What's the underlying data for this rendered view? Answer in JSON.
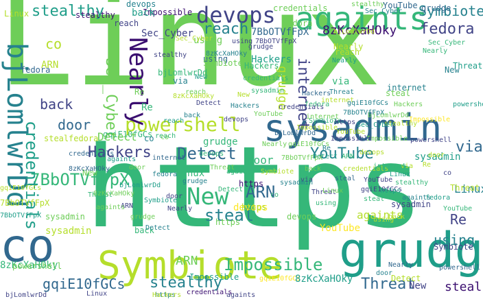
{
  "palette": {
    "dark_purple": "#3b0f70",
    "indigo": "#414487",
    "blue": "#31688e",
    "teal": "#26828e",
    "green": "#1f9e89",
    "emerald": "#35b779",
    "lime": "#6ece58",
    "yellow_green": "#b5de2b",
    "yellow": "#fde725"
  },
  "words": [
    {
      "text": "Linux",
      "color": "#6ece58"
    },
    {
      "text": "https",
      "color": "#35b779"
    },
    {
      "text": "againts",
      "color": "#35b779"
    },
    {
      "text": "sysadmin",
      "color": "#31688e"
    },
    {
      "text": "devops",
      "color": "#414487"
    },
    {
      "text": "Symbiote",
      "color": "#b5de2b"
    },
    {
      "text": "grudge",
      "color": "#1f9e89"
    },
    {
      "text": "co",
      "color": "#31688e"
    },
    {
      "text": "powershell",
      "color": "#b5de2b"
    },
    {
      "text": "Nearly",
      "color": "#3b0f70"
    },
    {
      "text": "bjLomlwrDd",
      "color": "#26828e"
    },
    {
      "text": "fedora",
      "color": "#414487"
    },
    {
      "text": "internet",
      "color": "#414487"
    },
    {
      "text": "Hackers",
      "color": "#414487"
    },
    {
      "text": "Detect",
      "color": "#31688e"
    },
    {
      "text": "YouTube",
      "color": "#26828e"
    },
    {
      "text": "ARN",
      "color": "#31688e"
    },
    {
      "text": "New",
      "color": "#35b779"
    },
    {
      "text": "Threat",
      "color": "#31688e"
    },
    {
      "text": "stealthy",
      "color": "#26828e"
    },
    {
      "text": "Impossible",
      "color": "#35b779"
    },
    {
      "text": "gqiE10fGCs",
      "color": "#31688e"
    },
    {
      "text": "8zKcXaHOky",
      "color": "#3b0f70"
    },
    {
      "text": "7BbOTVfFpX",
      "color": "#35b779"
    },
    {
      "text": "Sec_Cyber",
      "color": "#6ece58"
    },
    {
      "text": "credentials",
      "color": "#1f9e89"
    },
    {
      "text": "reach",
      "color": "#26828e"
    },
    {
      "text": "steal",
      "color": "#26828e"
    },
    {
      "text": "back",
      "color": "#414487"
    },
    {
      "text": "door",
      "color": "#31688e"
    },
    {
      "text": "using",
      "color": "#26828e"
    },
    {
      "text": "via",
      "color": "#31688e"
    },
    {
      "text": "Re",
      "color": "#414487"
    },
    {
      "text": "Symbiote",
      "color": "#26828e"
    },
    {
      "text": "sysadmin",
      "color": "#1f9e89"
    },
    {
      "text": "https",
      "color": "#6ece58"
    },
    {
      "text": "Linux",
      "color": "#26828e"
    },
    {
      "text": "againts",
      "color": "#b5de2b"
    },
    {
      "text": "devops",
      "color": "#fde725"
    },
    {
      "text": "grudge",
      "color": "#b5de2b"
    },
    {
      "text": "credentials",
      "color": "#6ece58"
    },
    {
      "text": "stealthy",
      "color": "#1f9e89"
    },
    {
      "text": "Impossible",
      "color": "#3b0f70"
    },
    {
      "text": "gqiE10fGCs",
      "color": "#fde725"
    },
    {
      "text": "bjLomlwrDd",
      "color": "#35b779"
    },
    {
      "text": "8zKcXaHOky",
      "color": "#1f9e89"
    },
    {
      "text": "7BbOTVfFpX",
      "color": "#31688e"
    },
    {
      "text": "Hackers",
      "color": "#35b779"
    },
    {
      "text": "Detect",
      "color": "#b5de2b"
    },
    {
      "text": "YouTube",
      "color": "#fde725"
    },
    {
      "text": "Threat",
      "color": "#1f9e89"
    },
    {
      "text": "fedora",
      "color": "#6ece58"
    },
    {
      "text": "Nearly",
      "color": "#b5de2b"
    },
    {
      "text": "powershell",
      "color": "#31688e"
    },
    {
      "text": "internet",
      "color": "#26828e"
    },
    {
      "text": "reach",
      "color": "#b5de2b"
    },
    {
      "text": "steal",
      "color": "#3b0f70"
    },
    {
      "text": "using",
      "color": "#6ece58"
    },
    {
      "text": "door",
      "color": "#35b779"
    },
    {
      "text": "back",
      "color": "#1f9e89"
    },
    {
      "text": "via",
      "color": "#35b779"
    },
    {
      "text": "New",
      "color": "#414487"
    },
    {
      "text": "ARN",
      "color": "#6ece58"
    },
    {
      "text": "Re",
      "color": "#35b779"
    },
    {
      "text": "co",
      "color": "#b5de2b"
    },
    {
      "text": "Sec_Cyber",
      "color": "#414487"
    },
    {
      "text": "Symbiote",
      "color": "#414487"
    },
    {
      "text": "sysadmin",
      "color": "#414487"
    },
    {
      "text": "Linux",
      "color": "#b5de2b"
    },
    {
      "text": "https",
      "color": "#26828e"
    },
    {
      "text": "againts",
      "color": "#414487"
    },
    {
      "text": "devops",
      "color": "#26828e"
    },
    {
      "text": "grudge",
      "color": "#31688e"
    },
    {
      "text": "credentials",
      "color": "#3b0f70"
    },
    {
      "text": "stealthy",
      "color": "#6ece58"
    },
    {
      "text": "Impossible",
      "color": "#1f9e89"
    },
    {
      "text": "gqiE10fGCs",
      "color": "#35b779"
    },
    {
      "text": "bjLomlwrDd",
      "color": "#414487"
    },
    {
      "text": "8zKcXaHOky",
      "color": "#35b779"
    },
    {
      "text": "7BbOTVfFpX",
      "color": "#b5de2b"
    },
    {
      "text": "Hackers",
      "color": "#1f9e89"
    },
    {
      "text": "Detect",
      "color": "#6ece58"
    },
    {
      "text": "YouTube",
      "color": "#31688e"
    },
    {
      "text": "Threat",
      "color": "#b5de2b"
    },
    {
      "text": "fedora",
      "color": "#31688e"
    },
    {
      "text": "Nearly",
      "color": "#1f9e89"
    },
    {
      "text": "powershell",
      "color": "#6ece58"
    },
    {
      "text": "internet",
      "color": "#6ece58"
    },
    {
      "text": "reach",
      "color": "#414487"
    },
    {
      "text": "steal",
      "color": "#b5de2b"
    },
    {
      "text": "using",
      "color": "#31688e"
    },
    {
      "text": "door",
      "color": "#26828e"
    },
    {
      "text": "back",
      "color": "#35b779"
    },
    {
      "text": "via",
      "color": "#26828e"
    },
    {
      "text": "New",
      "color": "#6ece58"
    },
    {
      "text": "ARN",
      "color": "#b5de2b"
    },
    {
      "text": "Re",
      "color": "#6ece58"
    },
    {
      "text": "co",
      "color": "#26828e"
    },
    {
      "text": "Sec_Cyber",
      "color": "#35b779"
    },
    {
      "text": "Symbiote",
      "color": "#6ece58"
    },
    {
      "text": "sysadmin",
      "color": "#b5de2b"
    },
    {
      "text": "Linux",
      "color": "#414487"
    },
    {
      "text": "https",
      "color": "#3b0f70"
    },
    {
      "text": "againts",
      "color": "#26828e"
    },
    {
      "text": "devops",
      "color": "#6ece58"
    },
    {
      "text": "grudge",
      "color": "#35b779"
    },
    {
      "text": "credentials",
      "color": "#b5de2b"
    },
    {
      "text": "stealthy",
      "color": "#3b0f70"
    },
    {
      "text": "Impossible",
      "color": "#fde725"
    },
    {
      "text": "gqiE10fGCs",
      "color": "#414487"
    },
    {
      "text": "bjLomlwrDd",
      "color": "#b5de2b"
    },
    {
      "text": "8zKcXaHOky",
      "color": "#31688e"
    },
    {
      "text": "7BbOTVfFpX",
      "color": "#1f9e89"
    },
    {
      "text": "Hackers",
      "color": "#b5de2b"
    },
    {
      "text": "Detect",
      "color": "#26828e"
    },
    {
      "text": "YouTube",
      "color": "#35b779"
    },
    {
      "text": "Threat",
      "color": "#414487"
    },
    {
      "text": "fedora",
      "color": "#b5de2b"
    },
    {
      "text": "Nearly",
      "color": "#31688e"
    },
    {
      "text": "powershell",
      "color": "#1f9e89"
    },
    {
      "text": "internet",
      "color": "#31688e"
    },
    {
      "text": "reach",
      "color": "#35b779"
    },
    {
      "text": "steal",
      "color": "#6ece58"
    },
    {
      "text": "using",
      "color": "#414487"
    },
    {
      "text": "door",
      "color": "#b5de2b"
    },
    {
      "text": "back",
      "color": "#6ece58"
    },
    {
      "text": "via",
      "color": "#b5de2b"
    },
    {
      "text": "New",
      "color": "#26828e"
    },
    {
      "text": "ARN",
      "color": "#414487"
    },
    {
      "text": "Re",
      "color": "#b5de2b"
    },
    {
      "text": "co",
      "color": "#6ece58"
    },
    {
      "text": "Sec_Cyber",
      "color": "#26828e"
    },
    {
      "text": "Symbiote",
      "color": "#35b779"
    },
    {
      "text": "sysadmin",
      "color": "#6ece58"
    },
    {
      "text": "Linux",
      "color": "#35b779"
    },
    {
      "text": "https",
      "color": "#b5de2b"
    },
    {
      "text": "againts",
      "color": "#6ece58"
    },
    {
      "text": "devops",
      "color": "#35b779"
    },
    {
      "text": "grudge",
      "color": "#414487"
    },
    {
      "text": "credentials",
      "color": "#31688e"
    },
    {
      "text": "stealthy",
      "color": "#414487"
    },
    {
      "text": "Impossible",
      "color": "#6ece58"
    },
    {
      "text": "gqiE10fGCs",
      "color": "#b5de2b"
    },
    {
      "text": "bjLomlwrDd",
      "color": "#6ece58"
    },
    {
      "text": "8zKcXaHOky",
      "color": "#26828e"
    },
    {
      "text": "7BbOTVfFpX",
      "color": "#414487"
    },
    {
      "text": "Hackers",
      "color": "#6ece58"
    },
    {
      "text": "Detect",
      "color": "#1f9e89"
    },
    {
      "text": "YouTube",
      "color": "#414487"
    },
    {
      "text": "Threat",
      "color": "#35b779"
    },
    {
      "text": "fedora",
      "color": "#1f9e89"
    },
    {
      "text": "Nearly",
      "color": "#35b779"
    },
    {
      "text": "internet",
      "color": "#35b779"
    },
    {
      "text": "reach",
      "color": "#6ece58"
    },
    {
      "text": "steal",
      "color": "#31688e"
    },
    {
      "text": "using",
      "color": "#b5de2b"
    },
    {
      "text": "door",
      "color": "#6ece58"
    },
    {
      "text": "back",
      "color": "#b5de2b"
    },
    {
      "text": "New",
      "color": "#b5de2b"
    },
    {
      "text": "ARN",
      "color": "#35b779"
    },
    {
      "text": "co",
      "color": "#414487"
    },
    {
      "text": "Sec_Cyber",
      "color": "#b5de2b"
    },
    {
      "text": "Symbiote",
      "color": "#1f9e89"
    },
    {
      "text": "sysadmin",
      "color": "#35b779"
    },
    {
      "text": "Linux",
      "color": "#1f9e89"
    },
    {
      "text": "https",
      "color": "#414487"
    },
    {
      "text": "againts",
      "color": "#1f9e89"
    },
    {
      "text": "devops",
      "color": "#b5de2b"
    },
    {
      "text": "grudge",
      "color": "#6ece58"
    },
    {
      "text": "credentials",
      "color": "#35b779"
    },
    {
      "text": "stealthy",
      "color": "#b5de2b"
    },
    {
      "text": "Impossible",
      "color": "#414487"
    },
    {
      "text": "gqiE10fGCs",
      "color": "#6ece58"
    },
    {
      "text": "bjLomlwrDd",
      "color": "#31688e"
    },
    {
      "text": "8zKcXaHOky",
      "color": "#6ece58"
    },
    {
      "text": "7BbOTVfFpX",
      "color": "#6ece58"
    },
    {
      "text": "Hackers",
      "color": "#31688e"
    },
    {
      "text": "Detect",
      "color": "#414487"
    },
    {
      "text": "YouTube",
      "color": "#b5de2b"
    },
    {
      "text": "Threat",
      "color": "#6ece58"
    },
    {
      "text": "fedora",
      "color": "#35b779"
    },
    {
      "text": "Nearly",
      "color": "#6ece58"
    },
    {
      "text": "powershell",
      "color": "#414487"
    },
    {
      "text": "internet",
      "color": "#b5de2b"
    },
    {
      "text": "reach",
      "color": "#1f9e89"
    },
    {
      "text": "steal",
      "color": "#35b779"
    },
    {
      "text": "using",
      "color": "#35b779"
    },
    {
      "text": "door",
      "color": "#414487"
    },
    {
      "text": "back",
      "color": "#26828e"
    },
    {
      "text": "via",
      "color": "#414487"
    },
    {
      "text": "New",
      "color": "#1f9e89"
    },
    {
      "text": "Re",
      "color": "#26828e"
    },
    {
      "text": "co",
      "color": "#35b779"
    },
    {
      "text": "Sec_Cyber",
      "color": "#1f9e89"
    },
    {
      "text": "Symbiote",
      "color": "#b5de2b"
    },
    {
      "text": "sysadmin",
      "color": "#26828e"
    },
    {
      "text": "Linux",
      "color": "#6ece58"
    },
    {
      "text": "https",
      "color": "#1f9e89"
    },
    {
      "text": "againts",
      "color": "#35b779"
    },
    {
      "text": "devops",
      "color": "#414487"
    },
    {
      "text": "grudge",
      "color": "#26828e"
    },
    {
      "text": "credentials",
      "color": "#414487"
    },
    {
      "text": "stealthy",
      "color": "#35b779"
    },
    {
      "text": "Impossible",
      "color": "#b5de2b"
    },
    {
      "text": "gqiE10fGCs",
      "color": "#26828e"
    },
    {
      "text": "bjLomlwrDd",
      "color": "#1f9e89"
    },
    {
      "text": "8zKcXaHOky",
      "color": "#b5de2b"
    },
    {
      "text": "7BbOTVfFpX",
      "color": "#26828e"
    },
    {
      "text": "Hackers",
      "color": "#26828e"
    },
    {
      "text": "Detect",
      "color": "#35b779"
    },
    {
      "text": "YouTube",
      "color": "#6ece58"
    },
    {
      "text": "Threat",
      "color": "#26828e"
    },
    {
      "text": "fedora",
      "color": "#26828e"
    },
    {
      "text": "Nearly",
      "color": "#414487"
    }
  ]
}
